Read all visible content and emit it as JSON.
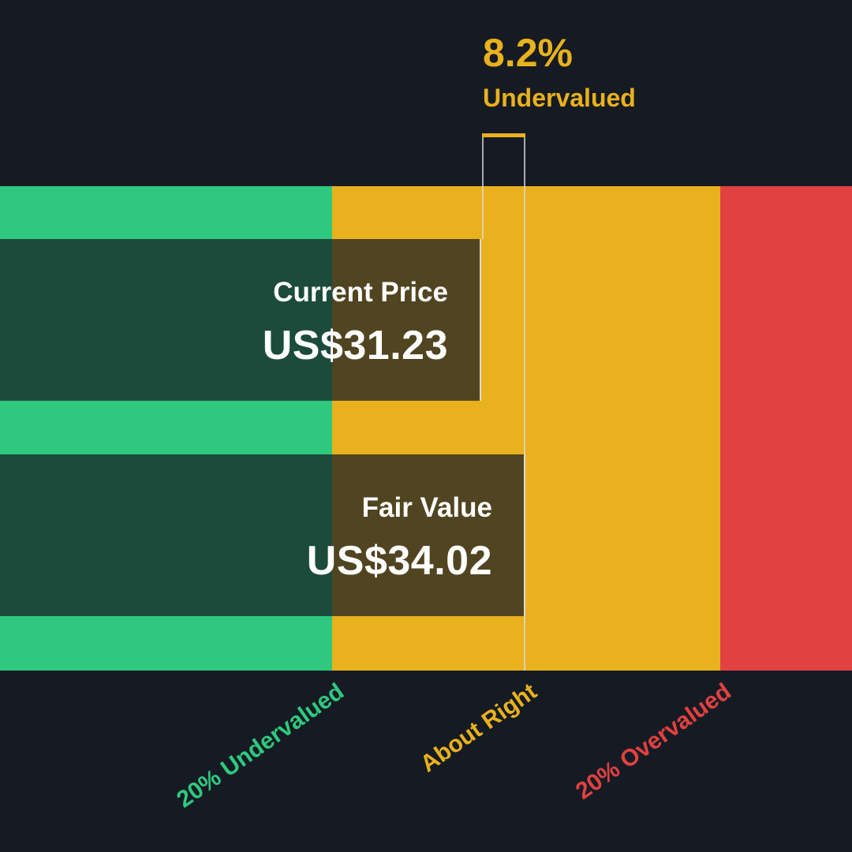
{
  "chart_data": {
    "type": "bar",
    "currency": "US$",
    "current_price": 31.23,
    "fair_value": 34.02,
    "discount_percent": 8.2,
    "labels": {
      "discount_value": "8.2%",
      "discount_status": "Undervalued",
      "current_title": "Current Price",
      "current_value": "US$31.23",
      "fair_title": "Fair Value",
      "fair_value": "US$34.02"
    },
    "zones": [
      {
        "label": "20% Undervalued",
        "color": "#2ec97f"
      },
      {
        "label": "About Right",
        "color": "#e9b11d"
      },
      {
        "label": "20% Overvalued",
        "color": "#e24141"
      }
    ]
  },
  "colors": {
    "background": "#161b23",
    "accent": "#e9b11d"
  }
}
